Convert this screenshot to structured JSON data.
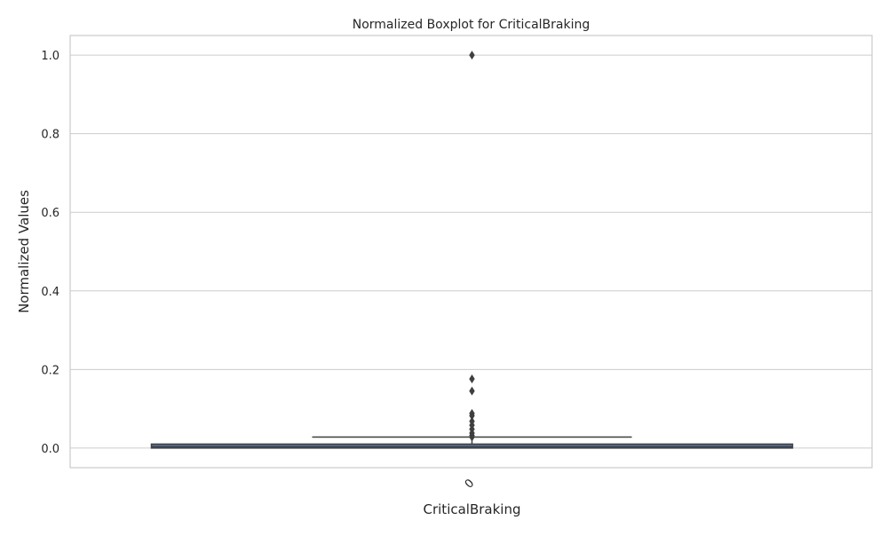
{
  "chart_data": {
    "type": "boxplot",
    "title": "Normalized Boxplot for CriticalBraking",
    "xlabel": "CriticalBraking",
    "ylabel": "Normalized Values",
    "categories": [
      "0"
    ],
    "boxes": [
      {
        "category": "0",
        "min": 0.0,
        "q1": 0.0,
        "median": 0.003,
        "q3": 0.01,
        "whisker_high": 0.028,
        "outliers": [
          0.028,
          0.032,
          0.038,
          0.048,
          0.058,
          0.068,
          0.082,
          0.088,
          0.145,
          0.176,
          1.0
        ]
      }
    ],
    "ylim": [
      -0.05,
      1.05
    ],
    "yticks": [
      0.0,
      0.2,
      0.4,
      0.6,
      0.8,
      1.0
    ],
    "ytick_labels": [
      "0.0",
      "0.2",
      "0.4",
      "0.6",
      "0.8",
      "1.0"
    ],
    "grid": true,
    "legend": "none",
    "colors": {
      "box_fill": "#4c72b0",
      "line": "#3f3f3f",
      "grid": "#cccccc",
      "spine": "#cccccc"
    }
  }
}
